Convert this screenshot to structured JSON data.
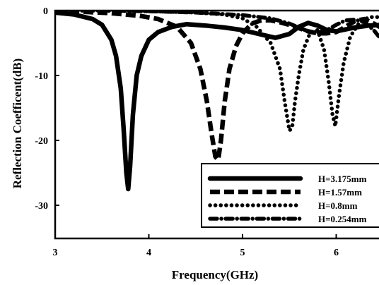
{
  "chart_data": {
    "type": "line",
    "title": "",
    "xlabel": "Frequency(GHz)",
    "ylabel": "Reflection Coefficent(dB)",
    "xlim": [
      3,
      6.5
    ],
    "ylim": [
      -35,
      0
    ],
    "xticks": [
      "3",
      "4",
      "5",
      "6"
    ],
    "yticks": [
      "0",
      "-10",
      "-20",
      "-30"
    ],
    "grid": false,
    "legend_position": "bottom-right",
    "series": [
      {
        "name": "H=3.175mm",
        "style": "solid",
        "color": "#000000",
        "x": [
          3.0,
          3.2,
          3.4,
          3.5,
          3.6,
          3.65,
          3.7,
          3.73,
          3.76,
          3.78,
          3.8,
          3.83,
          3.87,
          3.92,
          4.0,
          4.1,
          4.25,
          4.4,
          4.6,
          4.8,
          5.0,
          5.2,
          5.35,
          5.5,
          5.6,
          5.7,
          5.8,
          5.9,
          6.0,
          6.1,
          6.2,
          6.35,
          6.5
        ],
        "y": [
          -0.3,
          -0.6,
          -1.3,
          -2.2,
          -4.5,
          -7.0,
          -12.0,
          -18.0,
          -25.0,
          -27.5,
          -24.0,
          -16.0,
          -10.0,
          -7.0,
          -4.5,
          -3.3,
          -2.5,
          -2.1,
          -2.3,
          -2.6,
          -3.0,
          -3.7,
          -4.2,
          -3.6,
          -2.5,
          -1.9,
          -2.3,
          -3.0,
          -3.2,
          -2.9,
          -2.6,
          -2.3,
          -2.2
        ]
      },
      {
        "name": "H=1.57mm",
        "style": "dashed",
        "color": "#000000",
        "x": [
          3.0,
          3.3,
          3.6,
          3.9,
          4.1,
          4.3,
          4.45,
          4.55,
          4.62,
          4.67,
          4.71,
          4.74,
          4.77,
          4.81,
          4.86,
          4.93,
          5.0,
          5.1,
          5.2,
          5.3,
          5.4,
          5.5,
          5.6,
          5.7,
          5.8,
          5.9,
          6.0,
          6.1,
          6.2,
          6.3,
          6.4,
          6.5
        ],
        "y": [
          -0.1,
          -0.2,
          -0.4,
          -0.8,
          -1.3,
          -2.5,
          -5.0,
          -9.0,
          -14.0,
          -19.0,
          -22.5,
          -23.0,
          -20.0,
          -14.0,
          -9.0,
          -5.5,
          -3.5,
          -2.0,
          -1.5,
          -1.5,
          -1.8,
          -2.2,
          -2.7,
          -3.2,
          -3.5,
          -3.5,
          -3.3,
          -2.5,
          -1.6,
          -1.3,
          -2.0,
          -2.8
        ]
      },
      {
        "name": "H=0.8mm",
        "style": "dotted",
        "color": "#000000",
        "x": [
          3.0,
          3.5,
          4.0,
          4.5,
          4.8,
          5.0,
          5.15,
          5.3,
          5.4,
          5.45,
          5.5,
          5.53,
          5.56,
          5.6,
          5.65,
          5.72,
          5.8,
          5.87,
          5.92,
          5.96,
          5.99,
          6.03,
          6.08,
          6.15,
          6.25,
          6.35,
          6.45,
          6.5
        ],
        "y": [
          0.0,
          0.0,
          -0.1,
          -0.3,
          -0.6,
          -1.2,
          -2.5,
          -5.0,
          -9.0,
          -14.0,
          -18.5,
          -18.0,
          -14.0,
          -10.0,
          -6.0,
          -3.5,
          -3.0,
          -6.0,
          -11.0,
          -16.0,
          -17.8,
          -13.0,
          -8.0,
          -4.0,
          -1.8,
          -1.0,
          -1.0,
          -1.3
        ]
      },
      {
        "name": "H=0.254mm",
        "style": "dash-dot",
        "color": "#000000",
        "x": [
          3.0,
          3.5,
          4.0,
          4.5,
          5.0,
          5.3,
          5.5,
          5.6,
          5.7,
          5.8,
          5.9,
          6.0,
          6.1,
          6.2,
          6.3,
          6.4,
          6.5
        ],
        "y": [
          0.0,
          0.0,
          -0.1,
          -0.3,
          -0.7,
          -1.2,
          -2.0,
          -2.6,
          -3.2,
          -3.4,
          -3.0,
          -2.2,
          -1.5,
          -1.4,
          -1.8,
          -3.0,
          -4.8
        ]
      }
    ]
  }
}
